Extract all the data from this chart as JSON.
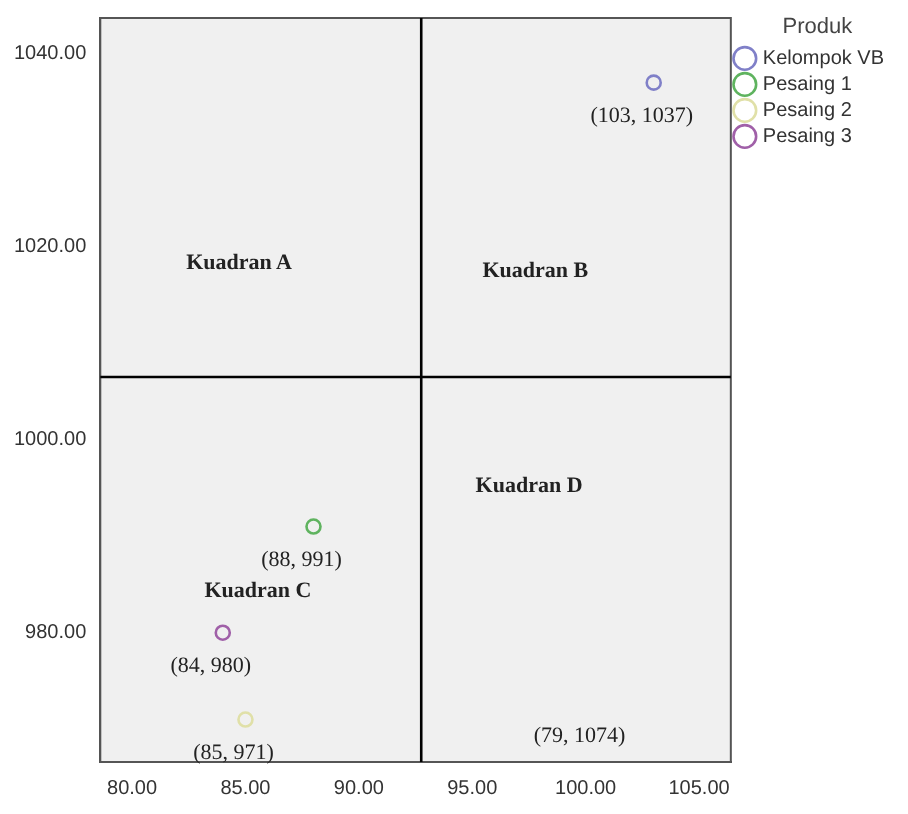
{
  "chart_data": {
    "type": "scatter",
    "legend_title": "Produk",
    "legend": "top right",
    "marker": "circle",
    "grid": false,
    "xlim": [
      78.6,
      106.4
    ],
    "ylim": [
      966.6,
      1043.7
    ],
    "xticks": [
      {
        "value": 80,
        "label": "80.00"
      },
      {
        "value": 85,
        "label": "85.00"
      },
      {
        "value": 90,
        "label": "90.00"
      },
      {
        "value": 95,
        "label": "95.00"
      },
      {
        "value": 100,
        "label": "100.00"
      },
      {
        "value": 105,
        "label": "105.00"
      }
    ],
    "yticks": [
      {
        "value": 980,
        "label": "980.00"
      },
      {
        "value": 1000,
        "label": "1000.00"
      },
      {
        "value": 1020,
        "label": "1020.00"
      },
      {
        "value": 1040,
        "label": "1040.00"
      }
    ],
    "series": [
      {
        "name": "Kelompok VB",
        "color": "#8080c8",
        "x": [
          103
        ],
        "values": [
          1037
        ]
      },
      {
        "name": "Pesaing 1",
        "color": "#5fb35f",
        "x": [
          88
        ],
        "values": [
          991
        ]
      },
      {
        "name": "Pesaing 2",
        "color": "#e0e0a8",
        "x": [
          85
        ],
        "values": [
          971
        ]
      },
      {
        "name": "Pesaing 3",
        "color": "#a060a8",
        "x": [
          84
        ],
        "values": [
          980
        ]
      }
    ],
    "ref_lines": [
      {
        "axis": "x",
        "value": 92.75,
        "color": "#000000"
      },
      {
        "axis": "y",
        "value": 1006.5,
        "color": "#000000"
      }
    ],
    "annotations": [
      "Kuadran A",
      "Kuadran B",
      "Kuadran C",
      "Kuadran D",
      {
        "text": "(103, 1037)",
        "x": 103,
        "y": 1037
      },
      {
        "text": "(88, 991)",
        "x": 88,
        "y": 991
      },
      {
        "text": "(84, 980)",
        "x": 84,
        "y": 980
      },
      {
        "text": "(85, 971)",
        "x": 85,
        "y": 971
      },
      "(79, 1074)"
    ]
  }
}
